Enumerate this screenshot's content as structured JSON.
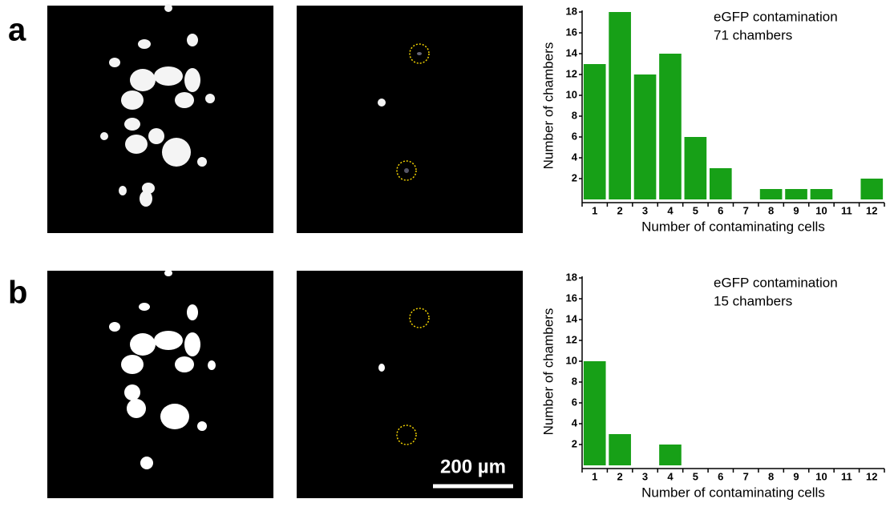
{
  "panel_labels": [
    "a",
    "b"
  ],
  "scale_bar": "200 µm",
  "chart_data": [
    {
      "type": "bar",
      "annotation": [
        "eGFP contamination",
        "71 chambers"
      ],
      "x_label": "Number of contaminating cells",
      "y_label": "Number of chambers",
      "categories": [
        "1",
        "2",
        "3",
        "4",
        "5",
        "6",
        "7",
        "8",
        "9",
        "10",
        "11",
        "12"
      ],
      "values": [
        13,
        18,
        12,
        14,
        6,
        3,
        0,
        1,
        1,
        1,
        0,
        2
      ],
      "color": "#17a017",
      "ylim": [
        0,
        18
      ],
      "yticks": [
        2,
        4,
        6,
        8,
        10,
        12,
        14,
        16,
        18
      ]
    },
    {
      "type": "bar",
      "annotation": [
        "eGFP contamination",
        "15 chambers"
      ],
      "x_label": "Number of contaminating cells",
      "y_label": "Number of chambers",
      "categories": [
        "1",
        "2",
        "3",
        "4",
        "5",
        "6",
        "7",
        "8",
        "9",
        "10",
        "11",
        "12"
      ],
      "values": [
        10,
        3,
        0,
        2,
        0,
        0,
        0,
        0,
        0,
        0,
        0,
        0
      ],
      "color": "#17a017",
      "ylim": [
        0,
        18
      ],
      "yticks": [
        2,
        4,
        6,
        8,
        10,
        12,
        14,
        16,
        18
      ]
    }
  ]
}
